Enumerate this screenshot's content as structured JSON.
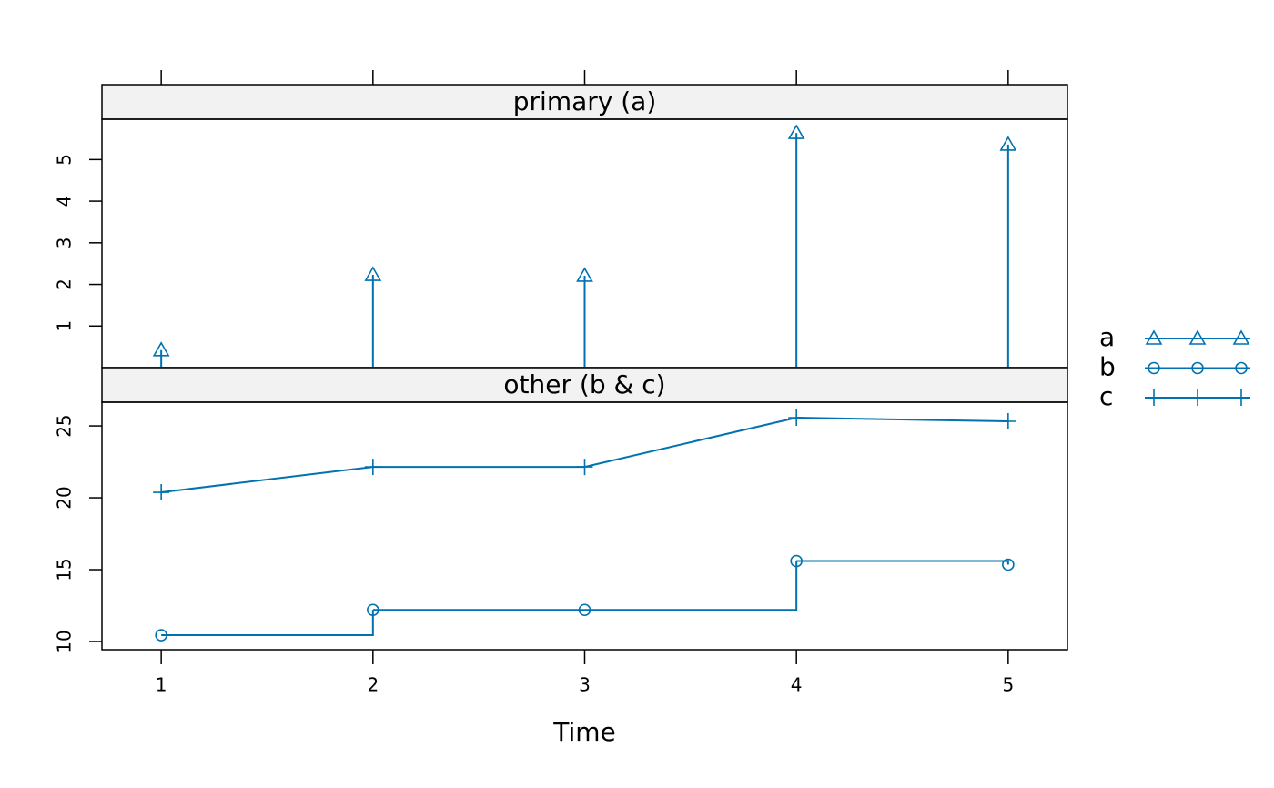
{
  "chart_data": [
    {
      "type": "line",
      "strip": "primary (a)",
      "style": "h",
      "x": [
        1,
        2,
        3,
        4,
        5
      ],
      "xlim": [
        0.72,
        5.28
      ],
      "xticks": [
        1,
        2,
        3,
        4,
        5
      ],
      "ylim": [
        0,
        5.97
      ],
      "yticks": [
        1,
        2,
        3,
        4,
        5
      ],
      "series": [
        {
          "name": "a",
          "color": "#0072b2",
          "marker": "triangle",
          "values": [
            0.42,
            2.23,
            2.21,
            5.64,
            5.36
          ]
        }
      ]
    },
    {
      "type": "line",
      "strip": "other (b & c)",
      "x_label": "Time",
      "x": [
        1,
        2,
        3,
        4,
        5
      ],
      "xlim": [
        0.72,
        5.28
      ],
      "xticks": [
        1,
        2,
        3,
        4,
        5
      ],
      "ylim": [
        9.43,
        26.65
      ],
      "yticks": [
        10,
        15,
        20,
        25
      ],
      "series": [
        {
          "name": "b",
          "color": "#0072b2",
          "marker": "circle",
          "style": "s",
          "values": [
            10.44,
            12.2,
            12.2,
            15.6,
            15.35
          ]
        },
        {
          "name": "c",
          "color": "#0072b2",
          "marker": "plus",
          "style": "l",
          "values": [
            20.38,
            22.15,
            22.15,
            25.57,
            25.32
          ]
        }
      ]
    }
  ]
}
